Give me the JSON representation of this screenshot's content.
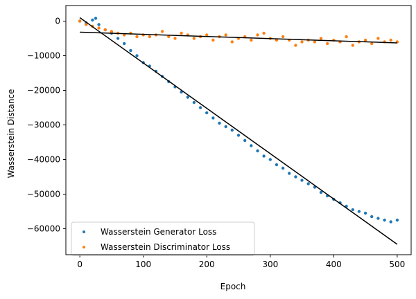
{
  "chart_data": {
    "type": "scatter",
    "xlabel": "Epoch",
    "ylabel": "Wasserstein Distance",
    "xlim": [
      -22,
      522
    ],
    "ylim": [
      -67500,
      4500
    ],
    "xticks": [
      0,
      100,
      200,
      300,
      400,
      500
    ],
    "yticks": [
      0,
      -10000,
      -20000,
      -30000,
      -40000,
      -50000,
      -60000
    ],
    "xtick_labels": [
      "0",
      "100",
      "200",
      "300",
      "400",
      "500"
    ],
    "ytick_labels": [
      "0",
      "−10000",
      "−20000",
      "−30000",
      "−40000",
      "−50000",
      "−60000"
    ],
    "grid": false,
    "legend_position": "lower-left",
    "series": [
      {
        "name": "Wasserstein Generator Loss",
        "color": "#1f77b4",
        "x": [
          0,
          10,
          20,
          25,
          30,
          40,
          50,
          60,
          70,
          80,
          90,
          100,
          110,
          120,
          130,
          140,
          150,
          160,
          170,
          180,
          190,
          200,
          210,
          220,
          230,
          240,
          250,
          260,
          270,
          280,
          290,
          300,
          310,
          320,
          330,
          340,
          350,
          360,
          370,
          380,
          390,
          400,
          410,
          420,
          430,
          440,
          450,
          460,
          470,
          480,
          490,
          500
        ],
        "y": [
          0,
          -500,
          300,
          800,
          -1000,
          -2500,
          -3500,
          -5000,
          -6500,
          -8500,
          -10000,
          -12000,
          -13000,
          -14500,
          -16000,
          -17500,
          -19000,
          -20500,
          -22000,
          -23500,
          -25000,
          -26500,
          -28000,
          -29500,
          -30500,
          -31500,
          -33000,
          -34500,
          -36000,
          -37500,
          -39000,
          -40000,
          -41500,
          -42500,
          -44000,
          -45000,
          -46000,
          -47000,
          -48000,
          -49500,
          -50500,
          -51500,
          -52500,
          -53500,
          -54500,
          -55000,
          -55500,
          -56500,
          -57000,
          -57500,
          -58000,
          -57500
        ]
      },
      {
        "name": "Wasserstein Discriminator Loss",
        "color": "#ff7f0e",
        "x": [
          0,
          10,
          20,
          30,
          40,
          50,
          60,
          70,
          80,
          90,
          100,
          110,
          120,
          130,
          140,
          150,
          160,
          170,
          180,
          190,
          200,
          210,
          220,
          230,
          240,
          250,
          260,
          270,
          280,
          290,
          300,
          310,
          320,
          330,
          340,
          350,
          360,
          370,
          380,
          390,
          400,
          410,
          420,
          430,
          440,
          450,
          460,
          470,
          480,
          490,
          500
        ],
        "y": [
          0,
          -1000,
          -1500,
          -2000,
          -2500,
          -3000,
          -3500,
          -4000,
          -3500,
          -4500,
          -4000,
          -4500,
          -4000,
          -3000,
          -4500,
          -5000,
          -3500,
          -4000,
          -5000,
          -4500,
          -4000,
          -5500,
          -4500,
          -4000,
          -6000,
          -5000,
          -4500,
          -5500,
          -4000,
          -3500,
          -5000,
          -5500,
          -4500,
          -5500,
          -7000,
          -6000,
          -5500,
          -6000,
          -5000,
          -6500,
          -5500,
          -6000,
          -4500,
          -7000,
          -6000,
          -5500,
          -6500,
          -5000,
          -6000,
          -5500,
          -6000
        ]
      }
    ],
    "trend_lines": [
      {
        "color": "#000000",
        "x": [
          0,
          500
        ],
        "y": [
          1000,
          -64500
        ]
      },
      {
        "color": "#000000",
        "x": [
          0,
          500
        ],
        "y": [
          -3200,
          -6300
        ]
      }
    ]
  }
}
